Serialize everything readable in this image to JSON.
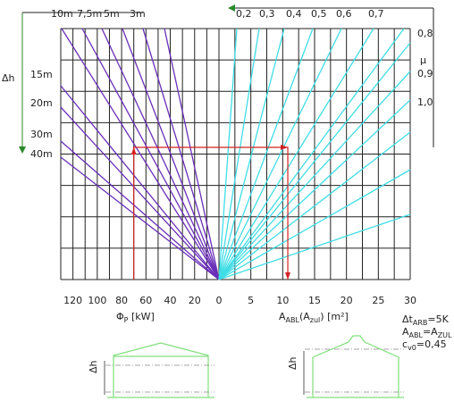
{
  "chart_data": {
    "type": "nomogram",
    "left_axis": {
      "label_symbol": "Φ",
      "label_sub": "P",
      "label_unit": " [kW]",
      "ticks": [
        120,
        100,
        80,
        60,
        40,
        20,
        0
      ],
      "range": [
        0,
        130
      ]
    },
    "right_axis": {
      "label_main": "A",
      "label_sub1": "ABL",
      "label_mid": "(A",
      "label_sub2": "zul",
      "label_end": ") [m²]",
      "ticks": [
        0,
        5,
        10,
        15,
        20,
        25,
        30
      ],
      "range": [
        0,
        30
      ]
    },
    "dh_axis": {
      "label": "Δh",
      "lines": [
        {
          "label": "10m",
          "value": 10
        },
        {
          "label": "7,5m",
          "value": 7.5
        },
        {
          "label": "5m",
          "value": 5
        },
        {
          "label": "3m",
          "value": 3
        },
        {
          "label": "15m",
          "value": 15
        },
        {
          "label": "20m",
          "value": 20
        },
        {
          "label": "30m",
          "value": 30
        },
        {
          "label": "40m",
          "value": 40
        }
      ]
    },
    "mu_axis": {
      "label": "μ",
      "lines": [
        {
          "label": "0,2",
          "value": 0.2
        },
        {
          "label": "0,3",
          "value": 0.3
        },
        {
          "label": "0,4",
          "value": 0.4
        },
        {
          "label": "0,5",
          "value": 0.5
        },
        {
          "label": "0,6",
          "value": 0.6
        },
        {
          "label": "0,7",
          "value": 0.7
        },
        {
          "label": "0,8",
          "value": 0.8
        },
        {
          "label": "0,9",
          "value": 0.9
        },
        {
          "label": "1,0",
          "value": 1.0
        }
      ]
    },
    "example_path": {
      "phi_kw": 70,
      "area_m2": 10.8
    },
    "colors": {
      "purple": "#6a2fb8",
      "cyan": "#3fdde6",
      "red": "#d42020",
      "green": "#7fe07a",
      "grid": "#222222"
    }
  },
  "notes": {
    "n1_pre": "Δt",
    "n1_sub": "ARB",
    "n1_post": "=5K",
    "n2_pre": "A",
    "n2_sub1": "ABL",
    "n2_mid": "=A",
    "n2_sub2": "ZUL",
    "n3_pre": "c",
    "n3_sub": "v0",
    "n3_post": "=0,45"
  },
  "sketches": {
    "dh_label_left": "Δh",
    "dh_label_right": "Δh"
  }
}
